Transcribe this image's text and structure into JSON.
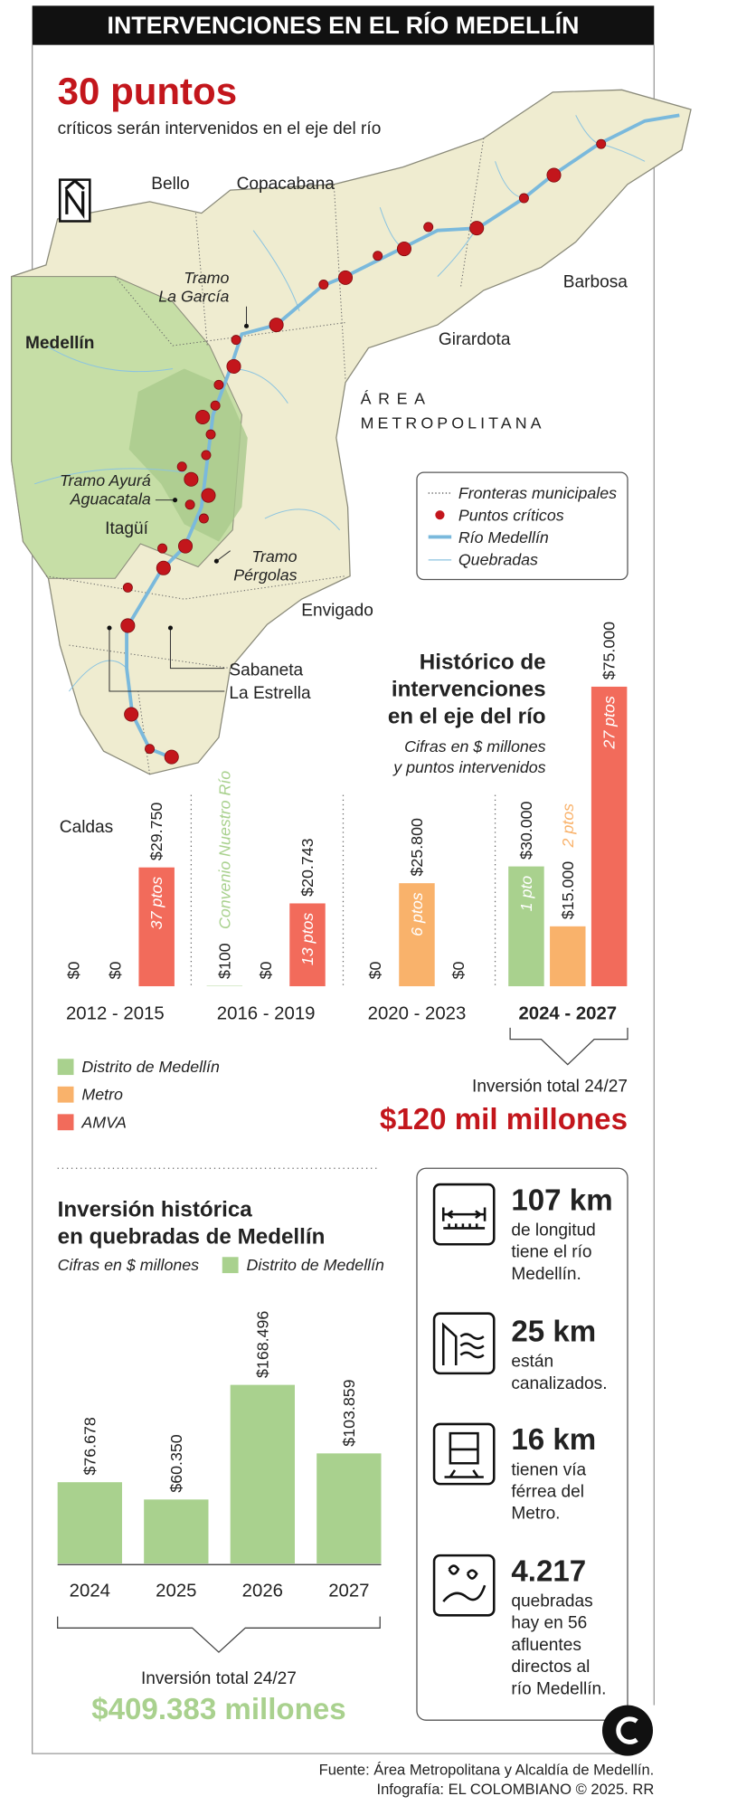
{
  "header": {
    "title": "INTERVENCIONES EN EL RÍO MEDELLÍN"
  },
  "headline": {
    "number": "30 puntos",
    "text": "críticos serán intervenidos en el eje del río"
  },
  "map": {
    "places": [
      "Bello",
      "Copacabana",
      "Barbosa",
      "Girardota",
      "Medellín",
      "Itagüí",
      "Envigado",
      "Sabaneta",
      "La Estrella",
      "Caldas"
    ],
    "region": [
      "ÁREA",
      "METROPOLITANA"
    ],
    "tramos": [
      [
        "Tramo",
        "La García"
      ],
      [
        "Tramo Ayurá",
        "Aguacatala"
      ],
      [
        "Tramo",
        "Pérgolas"
      ]
    ],
    "legend": [
      "Fronteras municipales",
      "Puntos críticos",
      "Río Medellín",
      "Quebradas"
    ]
  },
  "chart_data": [
    {
      "type": "bar",
      "title": [
        "Histórico de",
        "intervenciones",
        "en el eje del río"
      ],
      "subtitle": [
        "Cifras en $ millones",
        "y puntos intervenidos"
      ],
      "categories": [
        "2012 - 2015",
        "2016 - 2019",
        "2020 - 2023",
        "2024 - 2027"
      ],
      "series": [
        {
          "name": "Distrito de Medellín",
          "color": "#a9d18e",
          "values": [
            0,
            100,
            0,
            30000
          ],
          "value_labels": [
            "$0",
            "$100",
            "$0",
            "$30.000"
          ],
          "notes": [
            null,
            "Convenio Nuestro Río",
            null,
            "1 pto"
          ]
        },
        {
          "name": "Metro",
          "color": "#f9b26b",
          "values": [
            0,
            0,
            25800,
            15000
          ],
          "value_labels": [
            "$0",
            "$0",
            "$25.800",
            "$15.000"
          ],
          "notes": [
            null,
            null,
            "6 ptos",
            "2 ptos"
          ]
        },
        {
          "name": "AMVA",
          "color": "#f26b5b",
          "values": [
            29750,
            20743,
            0,
            75000
          ],
          "value_labels": [
            "$29.750",
            "$20.743",
            "$0",
            "$75.000"
          ],
          "notes": [
            "37 ptos",
            "13 ptos",
            null,
            "27 ptos"
          ]
        }
      ],
      "total": {
        "label": "Inversión total 24/27",
        "value": "$120 mil millones"
      }
    },
    {
      "type": "bar",
      "title": [
        "Inversión histórica",
        "en quebradas de Medellín"
      ],
      "subtitle": [
        "Cifras en $ millones"
      ],
      "categories": [
        "2024",
        "2025",
        "2026",
        "2027"
      ],
      "series": [
        {
          "name": "Distrito de Medellín",
          "color": "#a9d18e",
          "values": [
            76678,
            60350,
            168496,
            103859
          ],
          "value_labels": [
            "$76.678",
            "$60.350",
            "$168.496",
            "$103.859"
          ]
        }
      ],
      "total": {
        "label": "Inversión total 24/27",
        "value": "$409.383 millones"
      }
    }
  ],
  "stats": [
    {
      "value": "107 km",
      "lines": [
        "de longitud",
        "tiene el río",
        "Medellín."
      ]
    },
    {
      "value": "25 km",
      "lines": [
        "están",
        "canalizados."
      ]
    },
    {
      "value": "16 km",
      "lines": [
        "tienen vía",
        "férrea del",
        "Metro."
      ]
    },
    {
      "value": "4.217",
      "lines": [
        "quebradas",
        "hay en 56",
        "afluentes",
        "directos al",
        "río Medellín."
      ]
    }
  ],
  "footer": {
    "source": "Fuente: Área Metropolitana y Alcaldía de Medellín.",
    "credit": "Infografía: EL COLOMBIANO © 2025. RR"
  }
}
